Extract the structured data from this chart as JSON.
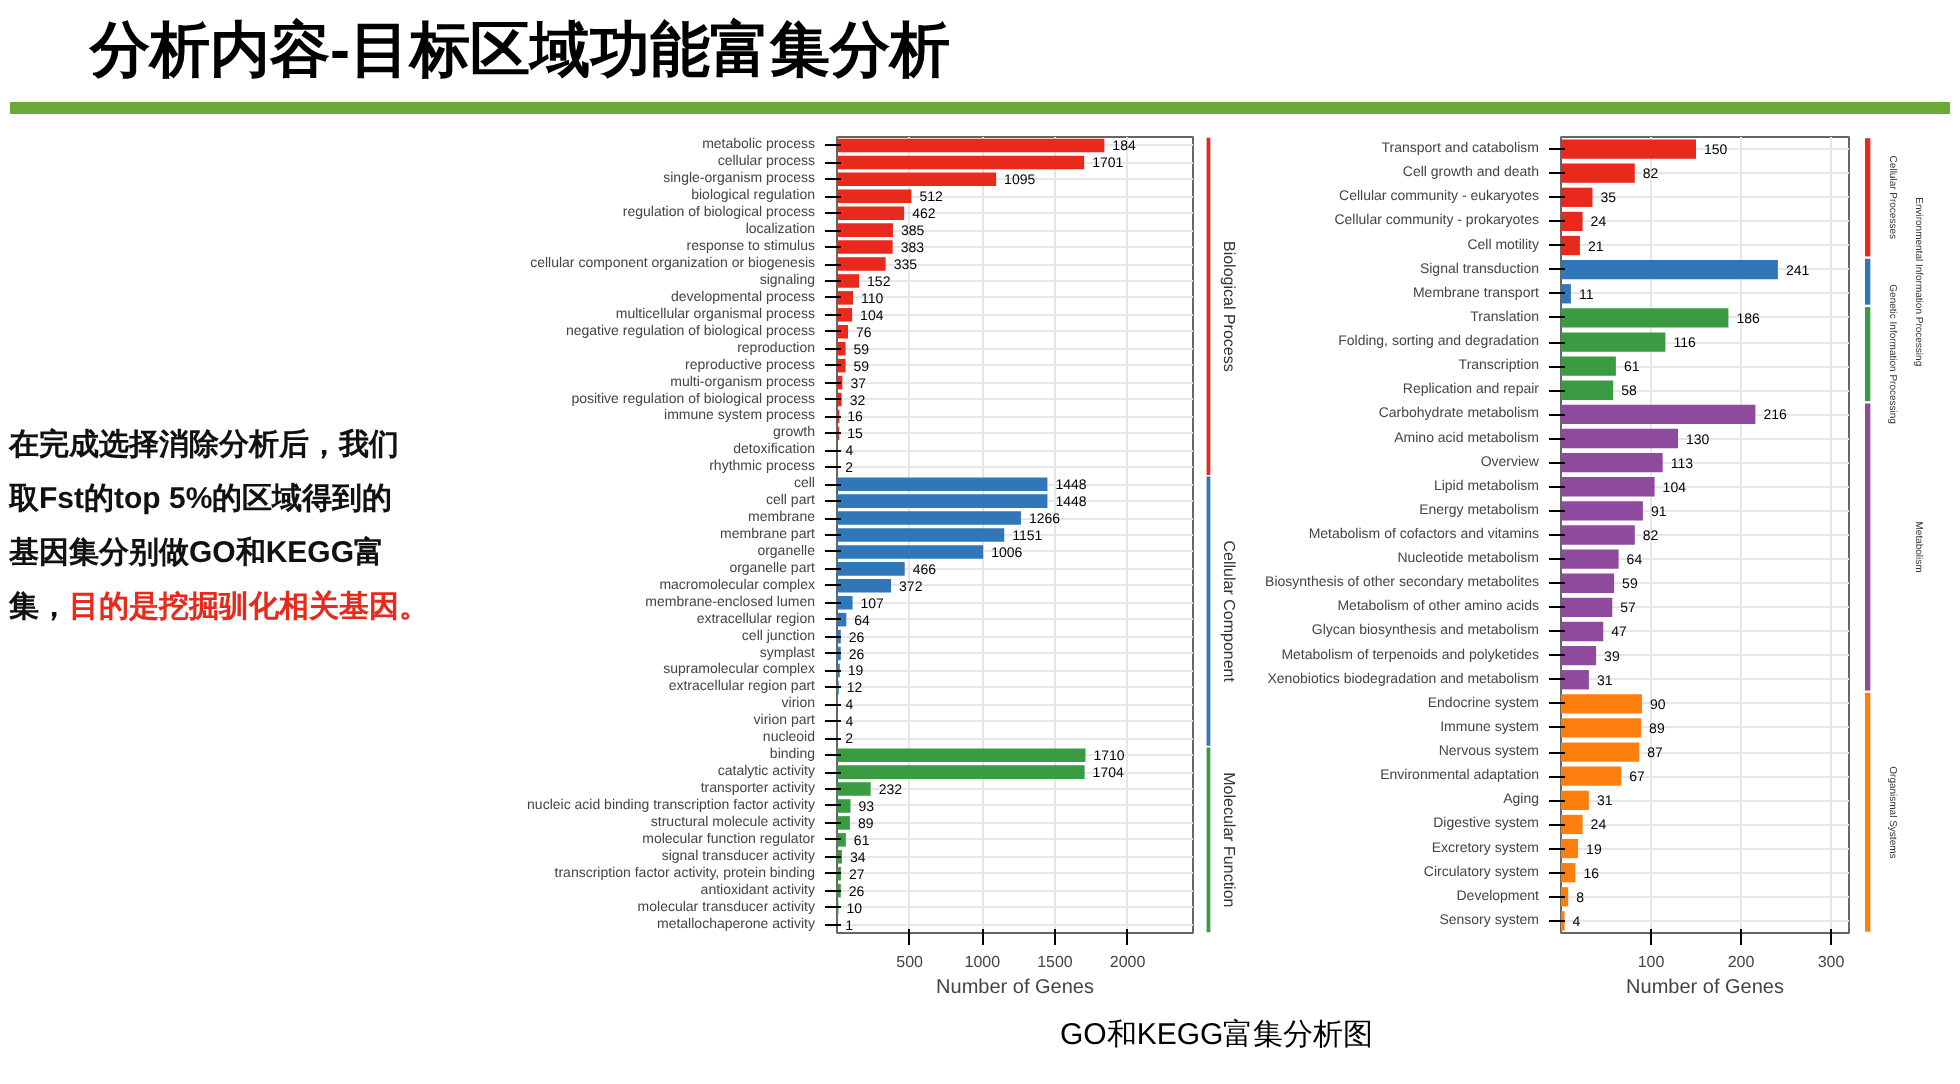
{
  "chart_data": [
    {
      "type": "other",
      "title": "分析内容-目标区域功能富集分析",
      "annotations": [
        "在完成选择消除分析后，我们",
        "取Fst的top 5%的区域得到的",
        "基因集分别做GO和KEGG富",
        "集，",
        "目的是挖掘驯化相关基因。",
        "GO和KEGG富集分析图"
      ]
    },
    {
      "type": "bar",
      "orientation": "horizontal",
      "annotations": [
        {
          "text": "184",
          "x": 1840,
          "y": "metabolic process"
        }
      ],
      "xlabel": "Number of Genes",
      "xlim": [
        0,
        2450
      ],
      "xticks": [
        500,
        1000,
        1500,
        2000
      ],
      "grid": true,
      "categories": [
        "metabolic process",
        "cellular process",
        "single-organism process",
        "biological regulation",
        "regulation of biological process",
        "localization",
        "response to stimulus",
        "cellular component organization or biogenesis",
        "signaling",
        "developmental process",
        "multicellular organismal process",
        "negative regulation of biological process",
        "reproduction",
        "reproductive process",
        "multi-organism process",
        "positive regulation of biological process",
        "immune system process",
        "growth",
        "detoxification",
        "rhythmic process",
        "cell",
        "cell part",
        "membrane",
        "membrane part",
        "organelle",
        "organelle part",
        "macromolecular complex",
        "membrane-enclosed lumen",
        "extracellular region",
        "cell junction",
        "symplast",
        "supramolecular complex",
        "extracellular region part",
        "virion",
        "virion part",
        "nucleoid",
        "binding",
        "catalytic activity",
        "transporter activity",
        "nucleic acid binding transcription factor activity",
        "structural molecule activity",
        "molecular function regulator",
        "signal transducer activity",
        "transcription factor activity, protein binding",
        "antioxidant activity",
        "molecular transducer activity",
        "metallochaperone activity"
      ],
      "series": [
        {
          "name": "Biological Process",
          "color": "#e8291c",
          "values": [
            1840,
            1701,
            1095,
            512,
            462,
            385,
            383,
            335,
            152,
            110,
            104,
            76,
            59,
            59,
            37,
            32,
            16,
            15,
            4,
            2,
            null,
            null,
            null,
            null,
            null,
            null,
            null,
            null,
            null,
            null,
            null,
            null,
            null,
            null,
            null,
            null,
            null,
            null,
            null,
            null,
            null,
            null,
            null,
            null,
            null,
            null,
            null
          ],
          "value_labels": [
            null,
            "1701",
            "1095",
            "512",
            "462",
            "385",
            "383",
            "335",
            "152",
            "110",
            "104",
            "76",
            "59",
            "59",
            "37",
            "32",
            "16",
            "15",
            "4",
            "2",
            null,
            null,
            null,
            null,
            null,
            null,
            null,
            null,
            null,
            null,
            null,
            null,
            null,
            null,
            null,
            null,
            null,
            null,
            null,
            null,
            null,
            null,
            null,
            null,
            null,
            null,
            null
          ]
        },
        {
          "name": "Cellular Component",
          "color": "#2f77b8",
          "values": [
            null,
            null,
            null,
            null,
            null,
            null,
            null,
            null,
            null,
            null,
            null,
            null,
            null,
            null,
            null,
            null,
            null,
            null,
            null,
            null,
            1448,
            1448,
            1266,
            1151,
            1006,
            466,
            372,
            107,
            64,
            26,
            26,
            19,
            12,
            4,
            4,
            2,
            null,
            null,
            null,
            null,
            null,
            null,
            null,
            null,
            null,
            null,
            null
          ],
          "value_labels": [
            null,
            null,
            null,
            null,
            null,
            null,
            null,
            null,
            null,
            null,
            null,
            null,
            null,
            null,
            null,
            null,
            null,
            null,
            null,
            null,
            "1448",
            "1448",
            "1266",
            "1151",
            "1006",
            "466",
            "372",
            "107",
            "64",
            "26",
            "26",
            "19",
            "12",
            "4",
            "4",
            "2",
            null,
            null,
            null,
            null,
            null,
            null,
            null,
            null,
            null,
            null,
            null
          ]
        },
        {
          "name": "Molecular Function",
          "color": "#3a9b43",
          "values": [
            null,
            null,
            null,
            null,
            null,
            null,
            null,
            null,
            null,
            null,
            null,
            null,
            null,
            null,
            null,
            null,
            null,
            null,
            null,
            null,
            null,
            null,
            null,
            null,
            null,
            null,
            null,
            null,
            null,
            null,
            null,
            null,
            null,
            null,
            null,
            null,
            1710,
            1704,
            232,
            93,
            89,
            61,
            34,
            27,
            26,
            10,
            1
          ],
          "value_labels": [
            null,
            null,
            null,
            null,
            null,
            null,
            null,
            null,
            null,
            null,
            null,
            null,
            null,
            null,
            null,
            null,
            null,
            null,
            null,
            null,
            null,
            null,
            null,
            null,
            null,
            null,
            null,
            null,
            null,
            null,
            null,
            null,
            null,
            null,
            null,
            null,
            "1710",
            "1704",
            "232",
            "93",
            "89",
            "61",
            "34",
            "27",
            "26",
            "10",
            "1"
          ]
        }
      ]
    },
    {
      "type": "bar",
      "orientation": "horizontal",
      "xlabel": "Number of Genes",
      "xlim": [
        0,
        320
      ],
      "xticks": [
        100,
        200,
        300
      ],
      "grid": true,
      "data_labels": true,
      "categories": [
        "Transport and catabolism",
        "Cell growth and death",
        "Cellular community - eukaryotes",
        "Cellular community - prokaryotes",
        "Cell motility",
        "Signal transduction",
        "Membrane transport",
        "Translation",
        "Folding, sorting and degradation",
        "Transcription",
        "Replication and repair",
        "Carbohydrate metabolism",
        "Amino acid metabolism",
        "Overview",
        "Lipid metabolism",
        "Energy metabolism",
        "Metabolism of cofactors and vitamins",
        "Nucleotide metabolism",
        "Biosynthesis of other secondary metabolites",
        "Metabolism of other amino acids",
        "Glycan biosynthesis and metabolism",
        "Metabolism of terpenoids and polyketides",
        "Xenobiotics biodegradation and metabolism",
        "Endocrine system",
        "Immune system",
        "Nervous system",
        "Environmental adaptation",
        "Aging",
        "Digestive system",
        "Excretory system",
        "Circulatory system",
        "Development",
        "Sensory system"
      ],
      "series": [
        {
          "name": "Cellular Processes",
          "color": "#e8291c",
          "values": [
            150,
            82,
            35,
            24,
            21,
            null,
            null,
            null,
            null,
            null,
            null,
            null,
            null,
            null,
            null,
            null,
            null,
            null,
            null,
            null,
            null,
            null,
            null,
            null,
            null,
            null,
            null,
            null,
            null,
            null,
            null,
            null,
            null
          ]
        },
        {
          "name": "Environmental Information Processing",
          "color": "#2f77b8",
          "values": [
            null,
            null,
            null,
            null,
            null,
            241,
            11,
            null,
            null,
            null,
            null,
            null,
            null,
            null,
            null,
            null,
            null,
            null,
            null,
            null,
            null,
            null,
            null,
            null,
            null,
            null,
            null,
            null,
            null,
            null,
            null,
            null,
            null
          ]
        },
        {
          "name": "Genetic Information Processing",
          "color": "#3a9b43",
          "values": [
            null,
            null,
            null,
            null,
            null,
            null,
            null,
            186,
            116,
            61,
            58,
            null,
            null,
            null,
            null,
            null,
            null,
            null,
            null,
            null,
            null,
            null,
            null,
            null,
            null,
            null,
            null,
            null,
            null,
            null,
            null,
            null,
            null
          ]
        },
        {
          "name": "Metabolism",
          "color": "#8e4b9e",
          "values": [
            null,
            null,
            null,
            null,
            null,
            null,
            null,
            null,
            null,
            null,
            null,
            216,
            130,
            113,
            104,
            91,
            82,
            64,
            59,
            57,
            47,
            39,
            31,
            null,
            null,
            null,
            null,
            null,
            null,
            null,
            null,
            null,
            null
          ]
        },
        {
          "name": "Organismal Systems",
          "color": "#ff7f0e",
          "values": [
            null,
            null,
            null,
            null,
            null,
            null,
            null,
            null,
            null,
            null,
            null,
            null,
            null,
            null,
            null,
            null,
            null,
            null,
            null,
            null,
            null,
            null,
            null,
            90,
            89,
            87,
            67,
            31,
            24,
            19,
            16,
            8,
            4
          ]
        }
      ]
    }
  ]
}
